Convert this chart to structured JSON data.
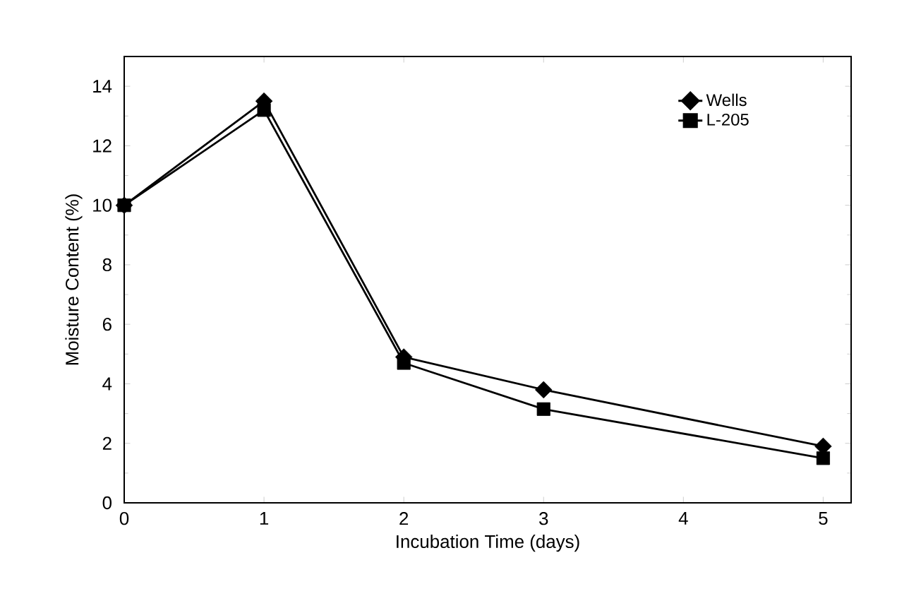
{
  "chart_data": {
    "type": "line",
    "xlabel": "Incubation Time (days)",
    "ylabel": "Moisture Content (%)",
    "x": [
      0,
      1,
      2,
      3,
      5
    ],
    "series": [
      {
        "name": "Wells",
        "color": "#000000",
        "marker": "diamond",
        "values": [
          10,
          13.5,
          4.9,
          3.8,
          1.9
        ]
      },
      {
        "name": "L-205",
        "color": "#000000",
        "marker": "square",
        "values": [
          10,
          13.2,
          4.7,
          3.15,
          1.5
        ]
      }
    ],
    "xlim": [
      0,
      5.2
    ],
    "ylim": [
      0,
      15
    ],
    "xticks": [
      0,
      1,
      2,
      3,
      4,
      5
    ],
    "yticks": [
      0,
      2,
      4,
      6,
      8,
      10,
      12,
      14
    ],
    "grid": false,
    "legend": "top right",
    "line_style": "solid"
  }
}
